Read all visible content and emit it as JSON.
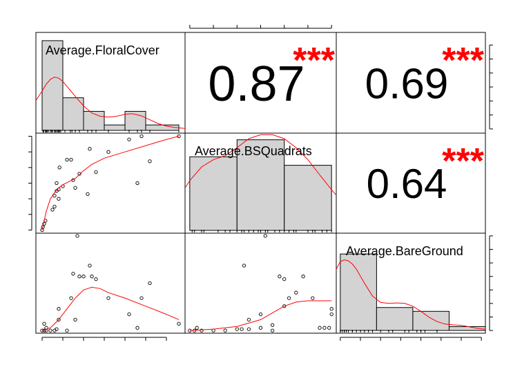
{
  "chart_data": {
    "type": "scatter-matrix",
    "variables": [
      "Average.FloralCover",
      "Average.BSQuadrats",
      "Average.BareGround"
    ],
    "axes": {
      "Average.FloralCover": {
        "range": [
          -1.5,
          34.5
        ],
        "ticks": [
          0,
          5,
          10,
          15,
          20,
          25,
          30
        ]
      },
      "Average.BSQuadrats": {
        "range": [
          -0.2,
          6.2
        ],
        "ticks": [
          0,
          1,
          2,
          3,
          4,
          5,
          6
        ]
      },
      "Average.BareGround": {
        "range": [
          -1,
          36
        ],
        "ticks": [
          0,
          5,
          10,
          15,
          20,
          25,
          30,
          35
        ]
      }
    },
    "correlations": [
      {
        "row": 0,
        "col": 1,
        "value": "0.87",
        "stars": "***"
      },
      {
        "row": 0,
        "col": 2,
        "value": "0.69",
        "stars": "***"
      },
      {
        "row": 1,
        "col": 2,
        "value": "0.64",
        "stars": "***"
      }
    ],
    "histograms": [
      {
        "variable": "Average.FloralCover",
        "breaks": [
          0,
          5,
          10,
          15,
          20,
          25,
          33
        ],
        "counts": [
          33,
          12,
          7,
          2,
          7,
          2
        ],
        "ymax": 34,
        "density": [
          [
            -1.5,
            11
          ],
          [
            0,
            14.5
          ],
          [
            1,
            17
          ],
          [
            2,
            18.8
          ],
          [
            3,
            19.6
          ],
          [
            4,
            19.2
          ],
          [
            5,
            18
          ],
          [
            6,
            16.2
          ],
          [
            8,
            12.5
          ],
          [
            10,
            9
          ],
          [
            12,
            6.4
          ],
          [
            14,
            5.2
          ],
          [
            16,
            4.9
          ],
          [
            18,
            5.2
          ],
          [
            20,
            5.9
          ],
          [
            21,
            6.1
          ],
          [
            22,
            6.1
          ],
          [
            24,
            5.3
          ],
          [
            26,
            3.9
          ],
          [
            28,
            2.5
          ],
          [
            30,
            1.6
          ],
          [
            32,
            1.1
          ],
          [
            34.5,
            0.7
          ]
        ],
        "rug": [
          0.2,
          0.4,
          0.8,
          1.0,
          1.2,
          1.5,
          2.0,
          2.3,
          2.5,
          3.0,
          3.2,
          3.5,
          3.8,
          4.0,
          4.2,
          4.5,
          5.5,
          6.8,
          7.2,
          8.0,
          9.0,
          11.0,
          12.0,
          13.0,
          16.0,
          21.0,
          23.0,
          24.0,
          26.0,
          33.0
        ]
      },
      {
        "variable": "Average.BSQuadrats",
        "breaks": [
          0,
          2,
          4,
          6
        ],
        "counts": [
          13,
          16,
          11.5
        ],
        "ymax": 16.2,
        "density": [
          [
            -0.2,
            7.5
          ],
          [
            0,
            8.8
          ],
          [
            0.5,
            11.2
          ],
          [
            1,
            12.5
          ],
          [
            1.5,
            13.2
          ],
          [
            2,
            14.6
          ],
          [
            2.5,
            16.2
          ],
          [
            3,
            16.9
          ],
          [
            3.5,
            16.9
          ],
          [
            4,
            16.2
          ],
          [
            4.5,
            14.6
          ],
          [
            5,
            12.5
          ],
          [
            5.5,
            9.8
          ],
          [
            6,
            7.2
          ],
          [
            6.2,
            6.2
          ]
        ],
        "rug": [
          0.1,
          0.2,
          0.5,
          0.6,
          1.2,
          1.5,
          1.7,
          2.0,
          2.2,
          2.3,
          2.5,
          2.7,
          2.9,
          3.0,
          3.2,
          3.3,
          3.6,
          3.8,
          4.0,
          4.2,
          4.4,
          4.5,
          5.0,
          5.2,
          5.3,
          5.6,
          5.8,
          6.0
        ]
      },
      {
        "variable": "Average.BareGround",
        "breaks": [
          0,
          9,
          18,
          27,
          36
        ],
        "counts": [
          30,
          9,
          7.5,
          1.5
        ],
        "ymax": 36,
        "density": [
          [
            -1,
            24
          ],
          [
            0,
            27
          ],
          [
            1,
            27.7
          ],
          [
            2,
            27.3
          ],
          [
            3,
            26
          ],
          [
            4,
            24
          ],
          [
            6,
            18.5
          ],
          [
            8,
            13.5
          ],
          [
            10,
            11
          ],
          [
            12,
            10.6
          ],
          [
            14,
            10.8
          ],
          [
            16,
            10.6
          ],
          [
            18,
            9.5
          ],
          [
            20,
            7.5
          ],
          [
            22,
            5.2
          ],
          [
            24,
            3.5
          ],
          [
            26,
            2.5
          ],
          [
            28,
            2.2
          ],
          [
            30,
            2.0
          ],
          [
            32,
            1.4
          ],
          [
            34,
            0.8
          ],
          [
            36,
            0.5
          ]
        ],
        "rug": [
          0,
          0,
          0,
          0.5,
          1,
          1,
          1.5,
          2,
          2,
          3,
          3,
          4,
          5,
          6,
          7,
          8,
          10,
          12,
          13,
          16,
          17,
          19,
          20,
          20,
          21,
          24,
          24,
          36
        ]
      }
    ],
    "pairs": {
      "floral_vs_bsq": [
        [
          0,
          0
        ],
        [
          0.2,
          0.2
        ],
        [
          0.5,
          0.4
        ],
        [
          0.8,
          0.6
        ],
        [
          2.5,
          1.3
        ],
        [
          3,
          1.5
        ],
        [
          3,
          2.2
        ],
        [
          3.5,
          2.5
        ],
        [
          3.5,
          3.0
        ],
        [
          4,
          2.0
        ],
        [
          4,
          2.6
        ],
        [
          4.2,
          4.0
        ],
        [
          5,
          2.8
        ],
        [
          6,
          4.5
        ],
        [
          7,
          4.5
        ],
        [
          7.5,
          3.2
        ],
        [
          8,
          2.7
        ],
        [
          9,
          3.6
        ],
        [
          11,
          2.3
        ],
        [
          11.5,
          5.2
        ],
        [
          13,
          3.7
        ],
        [
          16,
          5.0
        ],
        [
          21,
          5.8
        ],
        [
          23,
          3.0
        ],
        [
          24,
          6.0
        ],
        [
          26,
          4.4
        ],
        [
          33,
          6.0
        ]
      ],
      "floral_vs_bsq_smooth": [
        [
          0,
          0
        ],
        [
          1,
          1.2
        ],
        [
          2,
          2.0
        ],
        [
          3,
          2.4
        ],
        [
          4,
          2.7
        ],
        [
          5,
          2.9
        ],
        [
          8,
          3.3
        ],
        [
          10,
          3.8
        ],
        [
          12,
          4.2
        ],
        [
          15,
          4.6
        ],
        [
          20,
          5.0
        ],
        [
          25,
          5.4
        ],
        [
          30,
          5.8
        ],
        [
          33,
          6.0
        ]
      ],
      "floral_vs_bare": [
        [
          0,
          0
        ],
        [
          0.5,
          0
        ],
        [
          1,
          0
        ],
        [
          0.5,
          2.5
        ],
        [
          1,
          1
        ],
        [
          2,
          0
        ],
        [
          3,
          0
        ],
        [
          3.5,
          0.5
        ],
        [
          4,
          4
        ],
        [
          4,
          8
        ],
        [
          6,
          0
        ],
        [
          7,
          12
        ],
        [
          7.5,
          21
        ],
        [
          8,
          4
        ],
        [
          8.5,
          35
        ],
        [
          9,
          20
        ],
        [
          10,
          20
        ],
        [
          11.5,
          24
        ],
        [
          12,
          20
        ],
        [
          13,
          19
        ],
        [
          16,
          12
        ],
        [
          21,
          6
        ],
        [
          23,
          1
        ],
        [
          24,
          12
        ],
        [
          26,
          17.5
        ],
        [
          33,
          2.5
        ]
      ],
      "floral_vs_bare_smooth": [
        [
          0,
          0
        ],
        [
          2,
          1
        ],
        [
          4,
          4
        ],
        [
          6,
          8
        ],
        [
          8,
          12
        ],
        [
          10,
          15
        ],
        [
          12,
          16
        ],
        [
          14,
          15.5
        ],
        [
          16,
          14
        ],
        [
          20,
          12
        ],
        [
          25,
          9
        ],
        [
          30,
          6
        ],
        [
          33,
          4
        ]
      ],
      "bsq_vs_bare": [
        [
          0,
          0
        ],
        [
          0.2,
          0
        ],
        [
          0.3,
          1
        ],
        [
          0.5,
          0
        ],
        [
          1,
          0
        ],
        [
          1.5,
          0
        ],
        [
          2,
          0.5
        ],
        [
          2.2,
          0.5
        ],
        [
          2.3,
          24
        ],
        [
          2.5,
          0.5
        ],
        [
          2.5,
          4
        ],
        [
          3,
          1
        ],
        [
          3,
          6
        ],
        [
          3.2,
          35
        ],
        [
          3.5,
          2
        ],
        [
          3.5,
          0
        ],
        [
          3.8,
          20
        ],
        [
          4,
          19
        ],
        [
          4,
          9
        ],
        [
          4.2,
          12
        ],
        [
          4.5,
          14
        ],
        [
          4.8,
          20
        ],
        [
          5.2,
          12
        ],
        [
          5.5,
          1
        ],
        [
          5.7,
          1
        ],
        [
          5.9,
          1
        ],
        [
          6,
          6
        ],
        [
          6,
          8
        ]
      ],
      "bsq_vs_bare_smooth": [
        [
          0,
          0
        ],
        [
          1,
          0.5
        ],
        [
          2,
          1.5
        ],
        [
          3,
          4
        ],
        [
          3.5,
          6.5
        ],
        [
          4,
          9
        ],
        [
          4.5,
          10.5
        ],
        [
          5,
          11
        ],
        [
          5.5,
          11
        ],
        [
          6,
          11
        ]
      ]
    }
  }
}
